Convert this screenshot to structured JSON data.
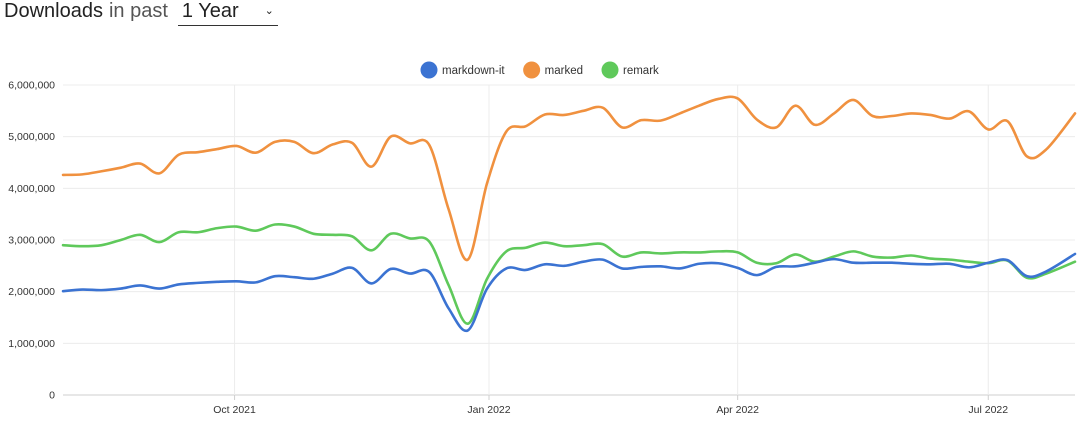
{
  "header": {
    "title_strong": "Downloads",
    "title_light": "in past",
    "period_value": "1 Year",
    "chevron_icon": "chevron-down-icon"
  },
  "chart_data": {
    "type": "line",
    "title": "",
    "xlabel": "",
    "ylabel": "",
    "ylim": [
      0,
      6000000
    ],
    "yticks": [
      0,
      1000000,
      2000000,
      3000000,
      4000000,
      5000000,
      6000000
    ],
    "ytick_labels": [
      "0",
      "1,000,000",
      "2,000,000",
      "3,000,000",
      "4,000,000",
      "5,000,000",
      "6,000,000"
    ],
    "xlim": [
      0,
      52.5
    ],
    "xticks": [
      {
        "label": "Oct 2021",
        "week": 8.9
      },
      {
        "label": "Jan 2022",
        "week": 22.1
      },
      {
        "label": "Apr 2022",
        "week": 35.0
      },
      {
        "label": "Jul 2022",
        "week": 48.0
      }
    ],
    "x": [
      0,
      1,
      2,
      3,
      4,
      5,
      6,
      7,
      8,
      9,
      10,
      11,
      12,
      13,
      14,
      15,
      16,
      17,
      18,
      19,
      20,
      21,
      22,
      23,
      24,
      25,
      26,
      27,
      28,
      29,
      30,
      31,
      32,
      33,
      34,
      35,
      36,
      37,
      38,
      39,
      40,
      41,
      42,
      43,
      44,
      45,
      46,
      47,
      48,
      49,
      50,
      51,
      52.5
    ],
    "legend_position": "top-center",
    "grid": true,
    "series": [
      {
        "name": "markdown-it",
        "color": "#3b73d2",
        "values": [
          2010000,
          2040000,
          2030000,
          2060000,
          2120000,
          2060000,
          2140000,
          2170000,
          2190000,
          2200000,
          2180000,
          2300000,
          2280000,
          2250000,
          2350000,
          2460000,
          2160000,
          2440000,
          2350000,
          2380000,
          1680000,
          1250000,
          2060000,
          2450000,
          2420000,
          2530000,
          2500000,
          2580000,
          2620000,
          2450000,
          2480000,
          2490000,
          2450000,
          2540000,
          2550000,
          2460000,
          2320000,
          2480000,
          2490000,
          2560000,
          2630000,
          2560000,
          2560000,
          2560000,
          2540000,
          2530000,
          2540000,
          2470000,
          2560000,
          2610000,
          2300000,
          2390000,
          2730000
        ]
      },
      {
        "name": "marked",
        "color": "#f0913f",
        "values": [
          4260000,
          4270000,
          4330000,
          4400000,
          4480000,
          4290000,
          4650000,
          4700000,
          4760000,
          4820000,
          4690000,
          4900000,
          4900000,
          4680000,
          4850000,
          4880000,
          4420000,
          5000000,
          4870000,
          4840000,
          3600000,
          2620000,
          4100000,
          5100000,
          5200000,
          5430000,
          5420000,
          5500000,
          5560000,
          5180000,
          5320000,
          5310000,
          5450000,
          5600000,
          5730000,
          5740000,
          5330000,
          5180000,
          5600000,
          5230000,
          5450000,
          5710000,
          5400000,
          5400000,
          5450000,
          5420000,
          5350000,
          5490000,
          5140000,
          5300000,
          4620000,
          4750000,
          5450000
        ]
      },
      {
        "name": "remark",
        "color": "#5fc95b",
        "values": [
          2900000,
          2880000,
          2900000,
          3000000,
          3100000,
          2960000,
          3150000,
          3150000,
          3230000,
          3260000,
          3180000,
          3300000,
          3260000,
          3120000,
          3100000,
          3070000,
          2800000,
          3120000,
          3030000,
          2970000,
          2130000,
          1380000,
          2250000,
          2780000,
          2850000,
          2950000,
          2880000,
          2900000,
          2920000,
          2680000,
          2760000,
          2740000,
          2760000,
          2760000,
          2780000,
          2760000,
          2560000,
          2550000,
          2720000,
          2580000,
          2680000,
          2780000,
          2680000,
          2660000,
          2700000,
          2640000,
          2620000,
          2580000,
          2550000,
          2600000,
          2270000,
          2350000,
          2580000
        ]
      }
    ]
  }
}
